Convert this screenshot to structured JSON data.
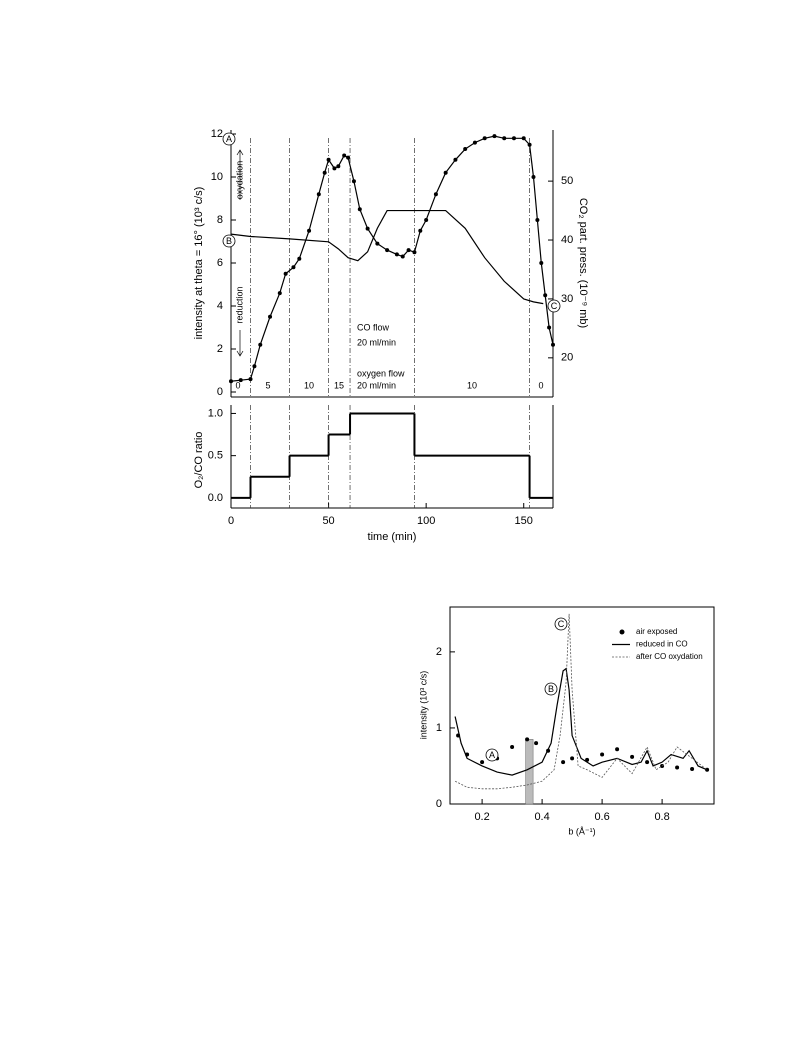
{
  "chart_data": [
    {
      "type": "line",
      "ylabel": "intensity at theta = 16° (10³ c/s)",
      "y2label": "CO₂ part. press. (10⁻⁹ mb)",
      "xlim": [
        0,
        165
      ],
      "ylim": [
        0,
        12
      ],
      "yticks": [
        0,
        2,
        4,
        6,
        8,
        10,
        12
      ],
      "y2lim": [
        14.2,
        58
      ],
      "y2ticks": [
        20,
        30,
        40,
        50
      ],
      "vlines": [
        10,
        30,
        50,
        61,
        94,
        153
      ],
      "annotations": [
        "oxydation",
        "reduction",
        "CO flow",
        "20 ml/min",
        "oxygen flow",
        "20 ml/min",
        "0",
        "5",
        "10",
        "15",
        "10",
        "0"
      ],
      "points": [
        "A",
        "B",
        "C"
      ],
      "series": [
        {
          "color": "#000000",
          "markers": true,
          "x": [
            0,
            5,
            10,
            12,
            15,
            20,
            25,
            28,
            32,
            35,
            40,
            45,
            48,
            50,
            53,
            55,
            58,
            60,
            63,
            66,
            70,
            75,
            80,
            85,
            88,
            91,
            94,
            97,
            100,
            105,
            110,
            115,
            120,
            125,
            130,
            135,
            140,
            145,
            150,
            153,
            155,
            157,
            159,
            161,
            163,
            165
          ],
          "values": [
            0.5,
            0.55,
            0.6,
            1.2,
            2.2,
            3.5,
            4.6,
            5.5,
            5.8,
            6.2,
            7.5,
            9.2,
            10.2,
            10.8,
            10.4,
            10.5,
            11.0,
            10.9,
            9.8,
            8.5,
            7.6,
            6.9,
            6.6,
            6.4,
            6.3,
            6.6,
            6.5,
            7.5,
            8.0,
            9.2,
            10.2,
            10.8,
            11.3,
            11.6,
            11.8,
            11.9,
            11.8,
            11.8,
            11.8,
            11.5,
            10,
            8,
            6,
            4.5,
            3,
            2.2
          ]
        },
        {
          "color": "#000000",
          "markers": false,
          "axis": "y2",
          "x": [
            0,
            10,
            30,
            50,
            55,
            60,
            65,
            70,
            75,
            80,
            90,
            110,
            120,
            130,
            140,
            150,
            155,
            160
          ],
          "values": [
            41,
            40.6,
            40.2,
            39.7,
            38.5,
            37,
            36.5,
            38,
            42,
            45,
            45,
            45,
            42,
            37,
            33,
            30,
            29.5,
            29.2
          ]
        }
      ]
    },
    {
      "type": "step",
      "ylabel": "O₂/CO ratio",
      "xlabel": "time (min)",
      "xlim": [
        0,
        165
      ],
      "xticks": [
        0,
        50,
        100,
        150
      ],
      "ylim": [
        -0.12,
        1.1
      ],
      "yticks": [
        {
          "value": 0,
          "label": "0.0"
        },
        {
          "value": 0.5,
          "label": "0.5"
        },
        {
          "value": 1,
          "label": "1.0"
        }
      ],
      "x": [
        0,
        10,
        30,
        50,
        61,
        94,
        153
      ],
      "values": [
        0,
        0.25,
        0.5,
        0.75,
        1,
        0.5,
        0
      ],
      "color": "#000000"
    },
    {
      "type": "line",
      "ylabel": "intensity (10³ c/s)",
      "xlabel": "b (Å⁻¹)",
      "xlim": [
        0.093,
        0.973
      ],
      "xticks": [
        0.2,
        0.4,
        0.6,
        0.8
      ],
      "ylim": [
        0,
        2.59
      ],
      "yticks": [
        0,
        1,
        2
      ],
      "points": [
        "A",
        "B",
        "C"
      ],
      "bar": {
        "x": [
          0.345,
          0.37
        ],
        "value": 0.85,
        "color": "#bbbbbb"
      },
      "series": [
        {
          "name": "air exposed",
          "color": "#000000",
          "markers": true,
          "style": "none",
          "x": [
            0.12,
            0.15,
            0.2,
            0.25,
            0.3,
            0.35,
            0.38,
            0.42,
            0.47,
            0.5,
            0.55,
            0.6,
            0.65,
            0.7,
            0.75,
            0.8,
            0.85,
            0.9,
            0.95
          ],
          "values": [
            0.9,
            0.65,
            0.55,
            0.6,
            0.75,
            0.85,
            0.8,
            0.7,
            0.55,
            0.6,
            0.58,
            0.65,
            0.72,
            0.62,
            0.55,
            0.5,
            0.48,
            0.46,
            0.45
          ]
        },
        {
          "name": "reduced in CO",
          "color": "#000000",
          "markers": false,
          "style": "solid",
          "x": [
            0.11,
            0.13,
            0.15,
            0.2,
            0.25,
            0.3,
            0.35,
            0.4,
            0.43,
            0.45,
            0.47,
            0.48,
            0.49,
            0.5,
            0.53,
            0.57,
            0.6,
            0.65,
            0.7,
            0.73,
            0.75,
            0.77,
            0.8,
            0.83,
            0.87,
            0.89,
            0.92,
            0.95
          ],
          "values": [
            1.15,
            0.8,
            0.6,
            0.5,
            0.42,
            0.38,
            0.45,
            0.55,
            0.8,
            1.3,
            1.75,
            1.78,
            1.5,
            0.9,
            0.6,
            0.5,
            0.55,
            0.6,
            0.52,
            0.55,
            0.7,
            0.5,
            0.55,
            0.65,
            0.6,
            0.7,
            0.5,
            0.45
          ]
        },
        {
          "name": "after CO oxydation",
          "color": "#555555",
          "markers": false,
          "style": "dashed",
          "x": [
            0.11,
            0.15,
            0.2,
            0.25,
            0.3,
            0.35,
            0.4,
            0.44,
            0.46,
            0.48,
            0.49,
            0.5,
            0.52,
            0.55,
            0.6,
            0.65,
            0.7,
            0.75,
            0.78,
            0.82,
            0.85,
            0.9,
            0.95
          ],
          "values": [
            0.3,
            0.22,
            0.2,
            0.2,
            0.22,
            0.25,
            0.3,
            0.45,
            0.9,
            1.6,
            2.5,
            1.5,
            0.5,
            0.45,
            0.35,
            0.6,
            0.4,
            0.75,
            0.45,
            0.55,
            0.75,
            0.6,
            0.45
          ]
        }
      ]
    }
  ]
}
